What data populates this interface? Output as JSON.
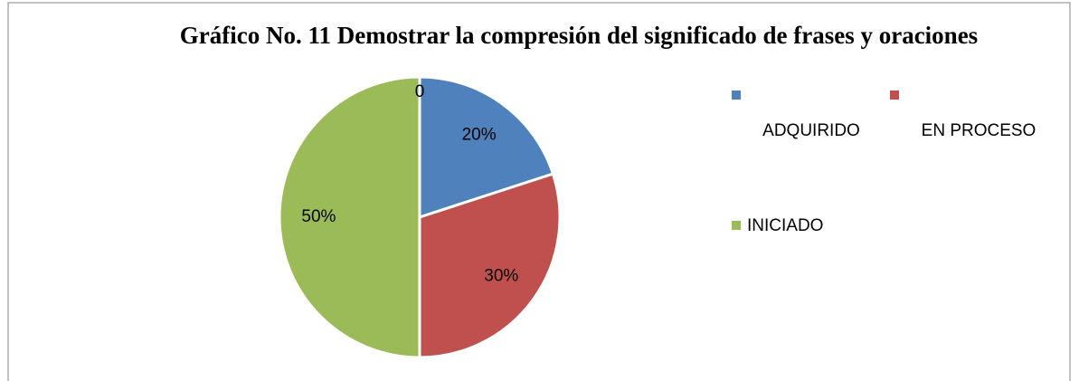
{
  "chart_data": {
    "type": "pie",
    "title": "Gráfico No. 11 Demostrar la compresión del significado de frases y oraciones",
    "categories": [
      "ADQUIRIDO",
      "EN PROCESO",
      "INICIADO",
      null
    ],
    "values": [
      20,
      30,
      50,
      0
    ],
    "value_labels": [
      "20%",
      "30%",
      "50%",
      "0"
    ],
    "colors": [
      "#4f81bd",
      "#c0504d",
      "#9bbb59",
      "#8064a2"
    ],
    "legend": "right"
  }
}
